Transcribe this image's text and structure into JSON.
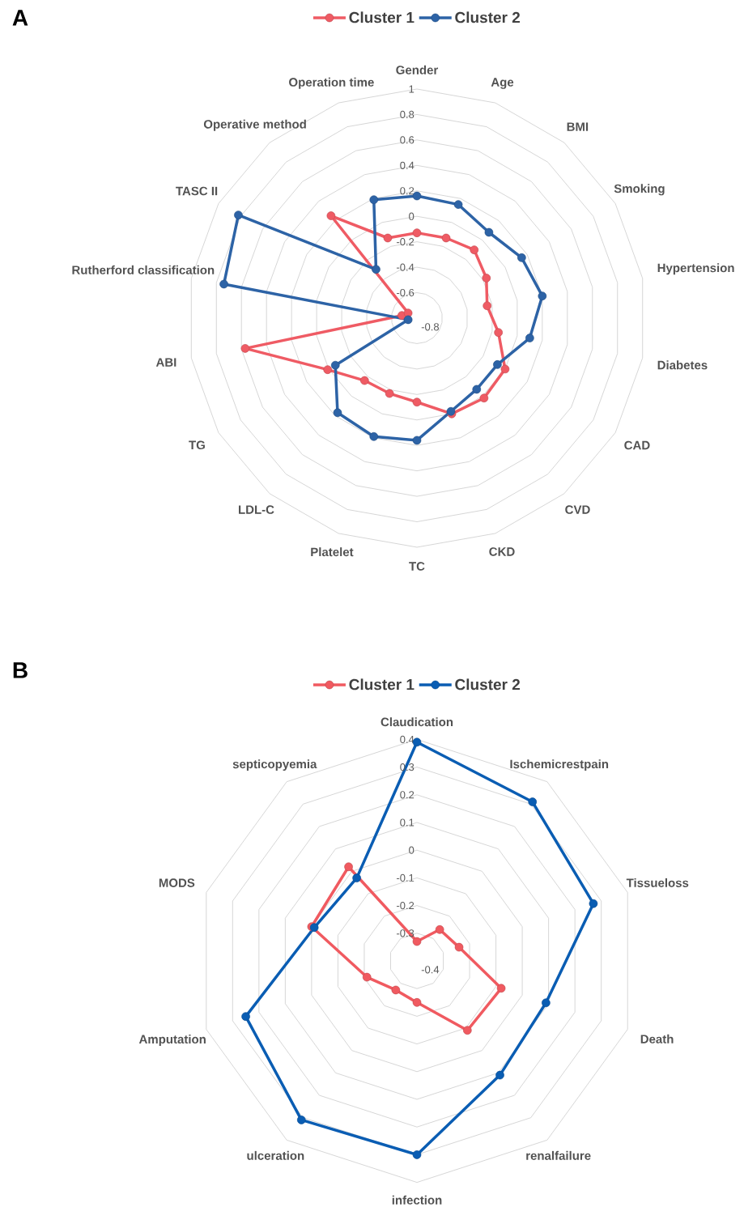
{
  "chart_data": [
    {
      "type": "radar",
      "title": "A",
      "categories": [
        "Gender",
        "Age",
        "BMI",
        "Smoking",
        "Hypertension",
        "Diabetes",
        "CAD",
        "CVD",
        "CKD",
        "TC",
        "Platelet",
        "LDL-C",
        "TG",
        "ABI",
        "Rutherford classification",
        "TASC II",
        "Operative method",
        "Operation time"
      ],
      "series": [
        {
          "name": "Cluster 1",
          "color": "#ef5b64",
          "values": [
            -0.13,
            -0.13,
            -0.1,
            -0.17,
            -0.24,
            -0.15,
            0.0,
            0.02,
            0.0,
            -0.14,
            -0.17,
            -0.16,
            0.01,
            0.57,
            -0.68,
            -0.72,
            0.25,
            -0.13
          ]
        },
        {
          "name": "Cluster 2",
          "color": "#2d63a6",
          "values": [
            0.16,
            0.15,
            0.08,
            0.15,
            0.2,
            0.1,
            -0.07,
            -0.07,
            -0.02,
            0.16,
            0.19,
            0.17,
            -0.06,
            -0.73,
            0.74,
            0.82,
            -0.3,
            0.19
          ]
        }
      ],
      "ylim": [
        -0.8,
        1
      ],
      "yticks": [
        -0.8,
        -0.6,
        -0.4,
        -0.2,
        0,
        0.2,
        0.4,
        0.6,
        0.8,
        1
      ],
      "grid": true,
      "legend": "top",
      "marker": "circle"
    },
    {
      "type": "radar",
      "title": "B",
      "categories": [
        "Claudication",
        "Ischemicrestpain",
        "Tissueloss",
        "Death",
        "renalfailure",
        "infection",
        "ulceration",
        "Amputation",
        "MODS",
        "septicopyemia"
      ],
      "series": [
        {
          "name": "Cluster 1",
          "color": "#f05a60",
          "values": [
            -0.33,
            -0.26,
            -0.24,
            -0.08,
            -0.09,
            -0.25,
            -0.27,
            -0.21,
            0.0,
            0.02
          ]
        },
        {
          "name": "Cluster 2",
          "color": "#0a5db3",
          "values": [
            0.39,
            0.31,
            0.27,
            0.09,
            0.11,
            0.3,
            0.31,
            0.25,
            -0.01,
            -0.03
          ]
        }
      ],
      "ylim": [
        -0.4,
        0.4
      ],
      "yticks": [
        -0.4,
        -0.3,
        -0.2,
        -0.1,
        0,
        0.1,
        0.2,
        0.3,
        0.4
      ],
      "grid": true,
      "legend": "top",
      "marker": "circle"
    }
  ]
}
